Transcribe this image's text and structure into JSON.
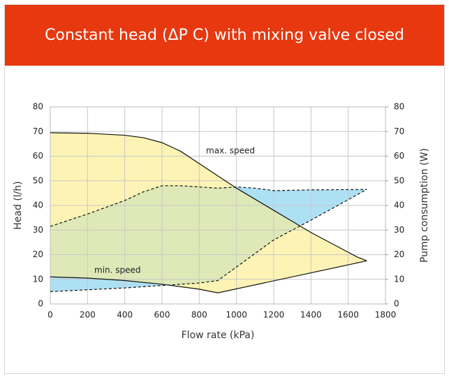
{
  "chart_data": {
    "type": "area-line",
    "title": "Constant head (ΔP C) with mixing valve closed",
    "xlabel": "Flow rate (kPa)",
    "ylabel": "Head (l/h)",
    "y2label": "Pump consumption (W)",
    "xlim": [
      0,
      1800
    ],
    "xticks": [
      0,
      200,
      400,
      600,
      800,
      1000,
      1200,
      1400,
      1600,
      1800
    ],
    "ylim": [
      0,
      80
    ],
    "yticks": [
      0,
      10,
      20,
      30,
      40,
      50,
      60,
      70,
      80
    ],
    "y2lim": [
      0,
      80
    ],
    "y2ticks": [
      0,
      10,
      20,
      30,
      40,
      50,
      60,
      70,
      80
    ],
    "grid": true,
    "overlap_color": "#dfe9b8",
    "series": [
      {
        "name": "max. speed",
        "color": "#111111",
        "fill": "#fdf3b4",
        "x": [
          0,
          200,
          400,
          500,
          600,
          700,
          800,
          900,
          1000,
          1100,
          1200,
          1300,
          1400,
          1500,
          1600,
          1650,
          1700
        ],
        "values": [
          69.5,
          69.3,
          68.5,
          67.5,
          65.5,
          62,
          57,
          52,
          47,
          42.5,
          38,
          33.5,
          29,
          25,
          21,
          19,
          17.5
        ]
      },
      {
        "name": "min. speed",
        "color": "#111111",
        "x": [
          0,
          200,
          400,
          600,
          800,
          900,
          1700
        ],
        "values": [
          11,
          10.5,
          9.5,
          8,
          6,
          4.5,
          17.5
        ]
      },
      {
        "color": "#111111",
        "dash": true,
        "axis": "y2",
        "fill": "#aee0f4",
        "x": [
          0,
          200,
          400,
          500,
          600,
          700,
          800,
          900,
          1000,
          1100,
          1200,
          1400,
          1700
        ],
        "values": [
          31.5,
          36.5,
          42,
          45.5,
          48,
          48,
          47.5,
          47,
          47.5,
          47,
          46,
          46.3,
          46.5
        ]
      },
      {
        "color": "#111111",
        "dash": true,
        "axis": "y2",
        "x": [
          0,
          400,
          600,
          800,
          900,
          1000,
          1200,
          1400,
          1700
        ],
        "values": [
          5,
          6.5,
          7.5,
          8.5,
          9.5,
          15,
          26,
          34,
          46.5
        ]
      }
    ]
  }
}
